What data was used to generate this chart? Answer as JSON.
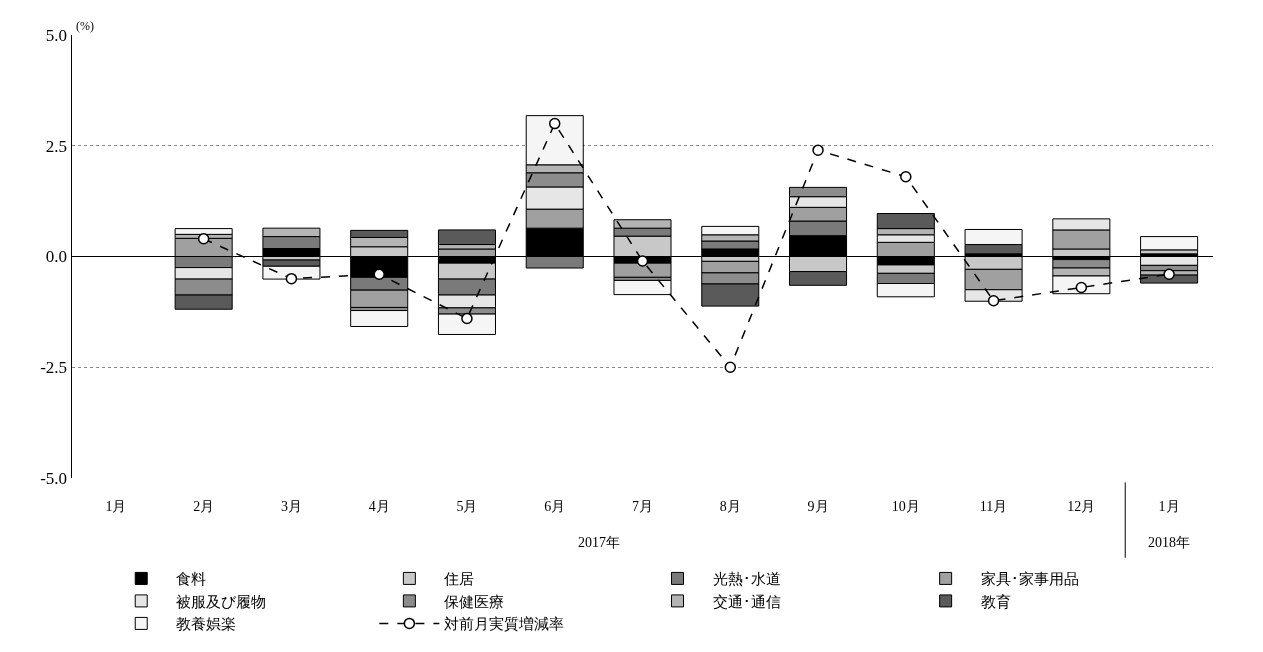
{
  "chart_data": {
    "type": "bar",
    "stacked": true,
    "ylabel": "(%)",
    "categories": [
      "1月",
      "2月",
      "3月",
      "4月",
      "5月",
      "6月",
      "7月",
      "8月",
      "9月",
      "10月",
      "11月",
      "12月",
      "1月"
    ],
    "series": [
      {
        "name": "食料",
        "color": "#000000",
        "values": [
          null,
          null,
          0.18,
          -0.47,
          -0.15,
          0.64,
          -0.15,
          0.17,
          0.47,
          -0.19,
          0.06,
          -0.07,
          0.06
        ]
      },
      {
        "name": "住居",
        "color": "#c8c8c8",
        "values": [
          null,
          null,
          -0.08,
          0.22,
          -0.36,
          null,
          0.46,
          -0.11,
          -0.34,
          -0.19,
          -0.29,
          0.17,
          0.09
        ]
      },
      {
        "name": "光熱･水道",
        "color": "#7a7a7a",
        "values": [
          null,
          -0.25,
          0.27,
          -0.29,
          -0.36,
          -0.26,
          0.18,
          0.18,
          0.33,
          -0.23,
          null,
          null,
          null
        ]
      },
      {
        "name": "家具･家事用品",
        "color": "#a0a0a0",
        "values": [
          null,
          0.41,
          null,
          -0.39,
          0.17,
          0.43,
          -0.32,
          -0.26,
          0.31,
          0.32,
          -0.46,
          0.43,
          null
        ]
      },
      {
        "name": "被服及び履物",
        "color": "#e6e6e6",
        "values": [
          null,
          -0.26,
          null,
          null,
          -0.29,
          0.5,
          null,
          null,
          0.24,
          0.17,
          -0.26,
          0.25,
          -0.2
        ]
      },
      {
        "name": "保健医療",
        "color": "#8c8c8c",
        "values": [
          null,
          -0.36,
          null,
          -0.07,
          -0.14,
          0.32,
          -0.07,
          -0.25,
          0.21,
          null,
          null,
          -0.19,
          -0.12
        ]
      },
      {
        "name": "交通･通信",
        "color": "#b4b4b4",
        "values": [
          null,
          0.09,
          0.19,
          0.21,
          0.1,
          0.18,
          0.19,
          0.14,
          null,
          0.14,
          null,
          -0.18,
          -0.1
        ]
      },
      {
        "name": "教育",
        "color": "#5a5a5a",
        "values": [
          null,
          -0.32,
          -0.14,
          0.16,
          0.33,
          null,
          null,
          -0.5,
          -0.31,
          0.34,
          0.21,
          null,
          -0.18
        ]
      },
      {
        "name": "教養娯楽",
        "color": "#f5f5f5",
        "values": [
          null,
          0.13,
          -0.29,
          -0.36,
          -0.46,
          1.11,
          -0.32,
          0.19,
          null,
          -0.3,
          0.34,
          -0.4,
          0.3
        ]
      },
      {
        "name": "対前月実質増減率",
        "type": "line",
        "color": "#000000",
        "values": [
          null,
          0.4,
          -0.5,
          -0.4,
          -1.4,
          3.0,
          -0.1,
          -2.5,
          2.4,
          1.8,
          -1.0,
          -0.7,
          -0.4
        ]
      }
    ],
    "ylim": [
      -5.0,
      5.0
    ],
    "yticks": [
      {
        "value": -5,
        "label": "-5.0"
      },
      {
        "value": -2.5,
        "label": "-2.5"
      },
      {
        "value": 0,
        "label": "0.0"
      },
      {
        "value": 2.5,
        "label": "2.5"
      },
      {
        "value": 5,
        "label": "5.0"
      }
    ],
    "grid": "y",
    "legend": "bottom",
    "marker": "circle",
    "line_style": "dashed",
    "annotations": [
      "2017年",
      "2018年"
    ]
  }
}
